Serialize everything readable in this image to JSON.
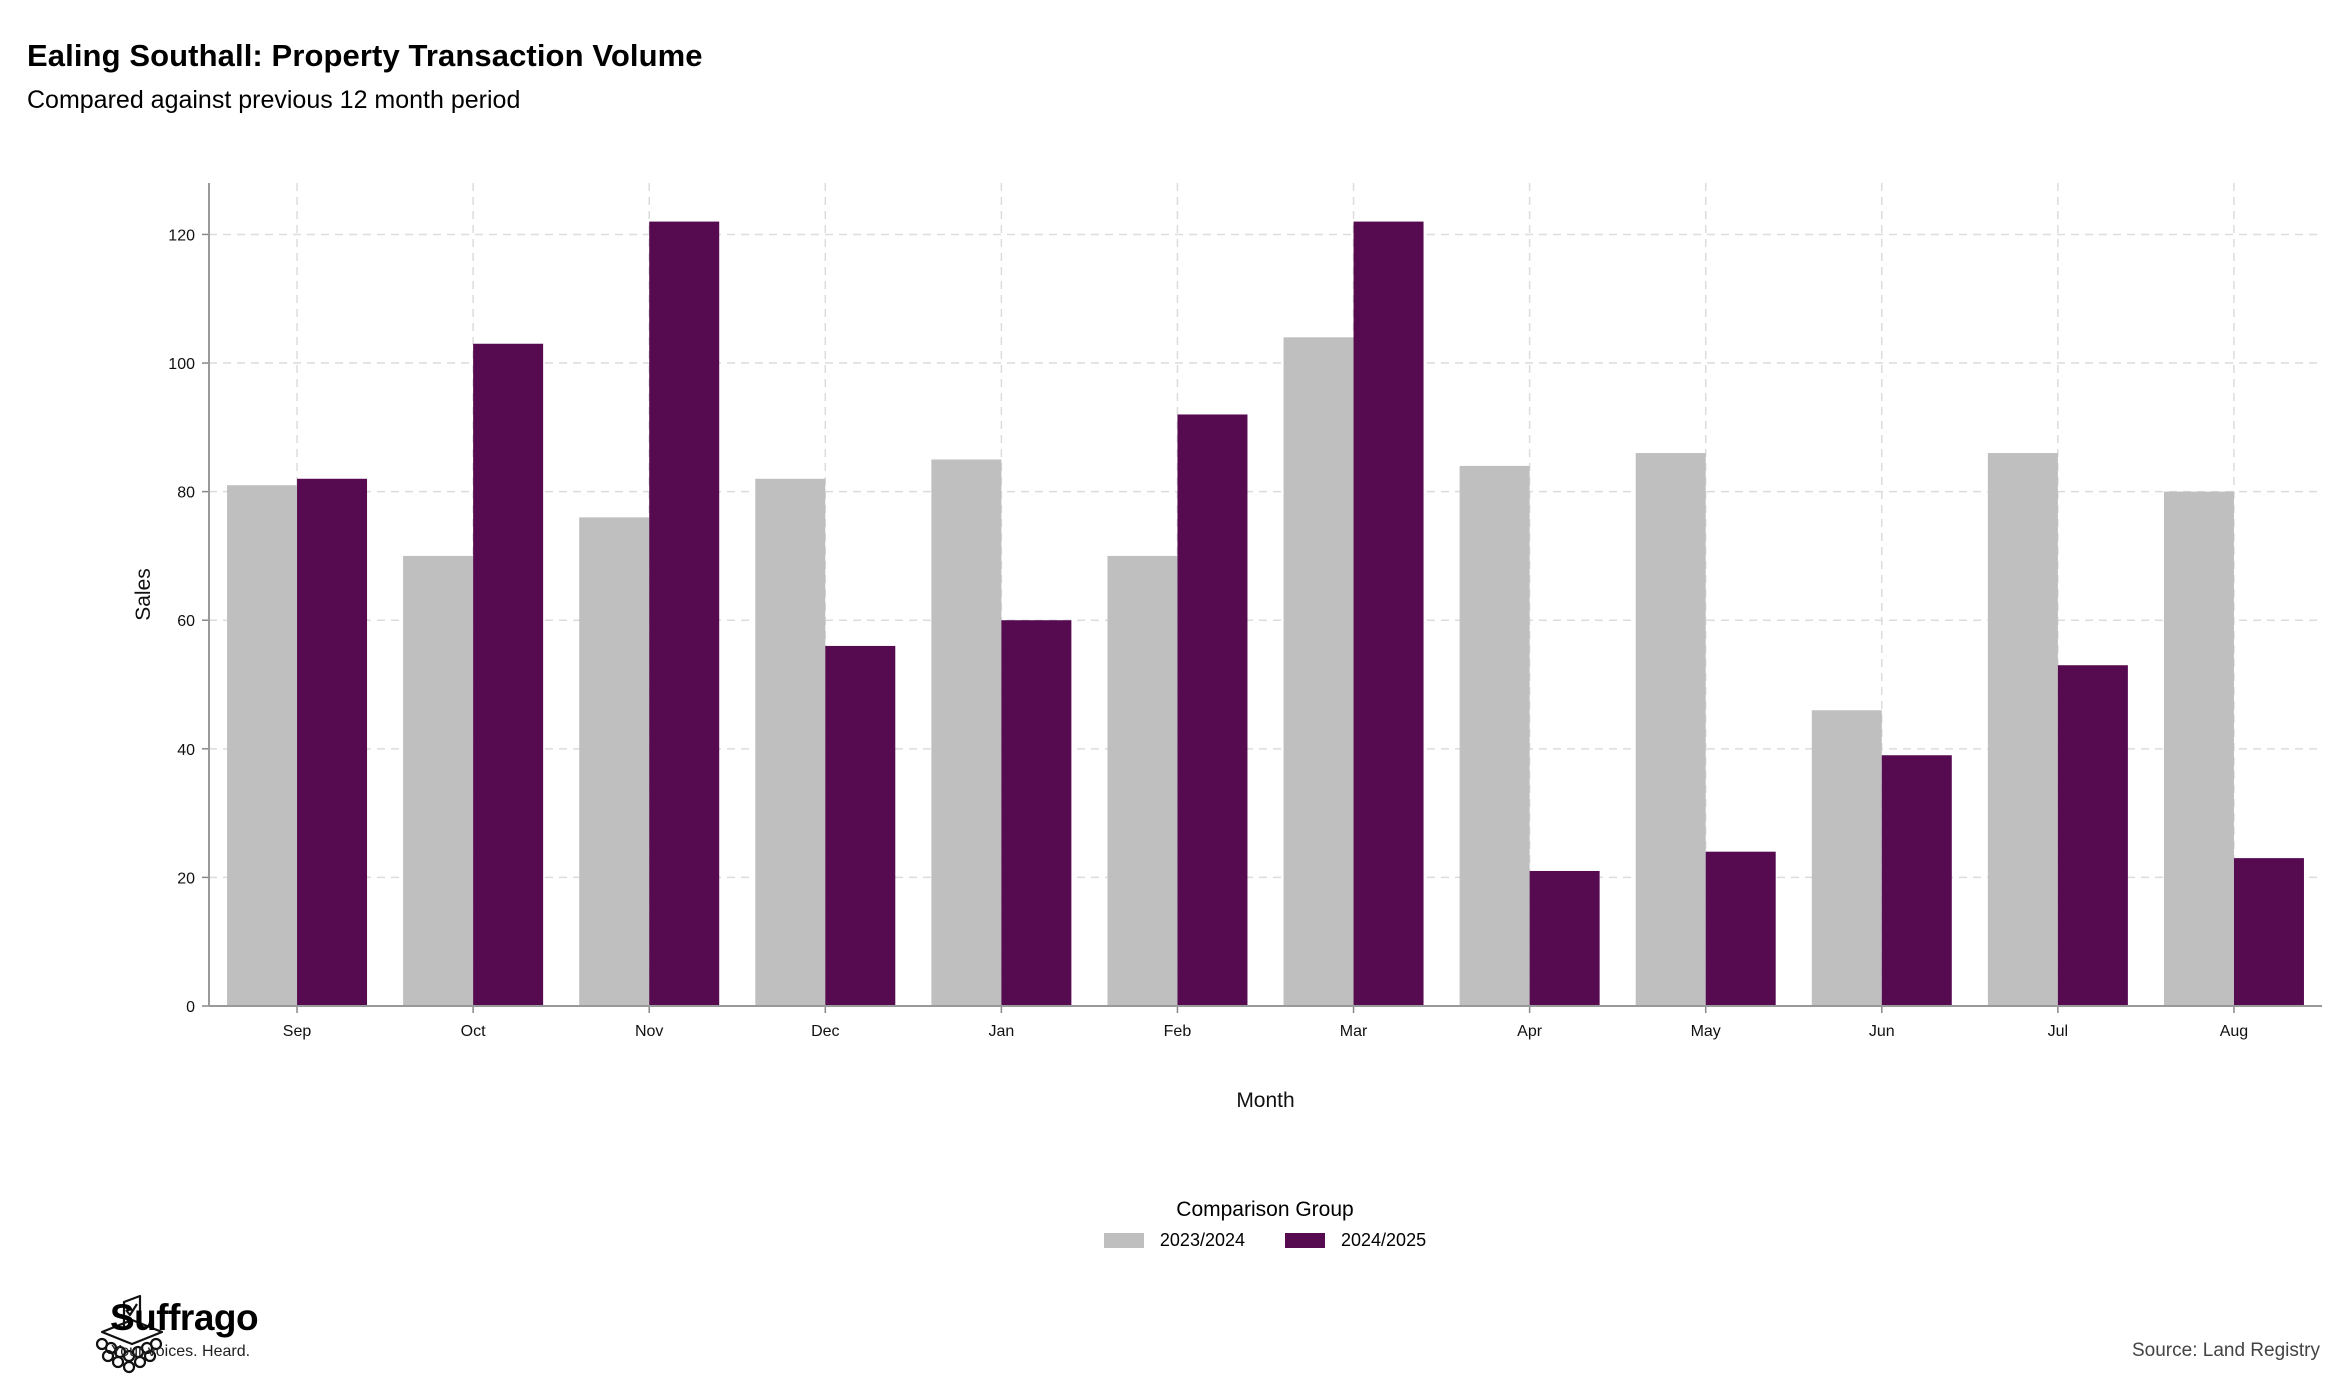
{
  "header": {
    "title": "Ealing Southall: Property Transaction Volume",
    "subtitle": "Compared against previous 12 month period"
  },
  "chart_data": {
    "type": "bar",
    "categories": [
      "Sep",
      "Oct",
      "Nov",
      "Dec",
      "Jan",
      "Feb",
      "Mar",
      "Apr",
      "May",
      "Jun",
      "Jul",
      "Aug"
    ],
    "series": [
      {
        "name": "2023/2024",
        "color": "#bfbfbf",
        "values": [
          81,
          70,
          76,
          82,
          85,
          70,
          104,
          84,
          86,
          46,
          86,
          80
        ]
      },
      {
        "name": "2024/2025",
        "color": "#560b51",
        "values": [
          82,
          103,
          122,
          56,
          60,
          92,
          122,
          21,
          24,
          39,
          53,
          23
        ]
      }
    ],
    "xlabel": "Month",
    "ylabel": "Sales",
    "ylim": [
      0,
      128
    ],
    "yticks": [
      0,
      20,
      40,
      60,
      80,
      100,
      120
    ],
    "grid": true,
    "legend_title": "Comparison Group",
    "legend_position": "bottom"
  },
  "footer": {
    "brand": "Suffrago",
    "tagline": "Your voices. Heard.",
    "source": "Source: Land Registry"
  }
}
